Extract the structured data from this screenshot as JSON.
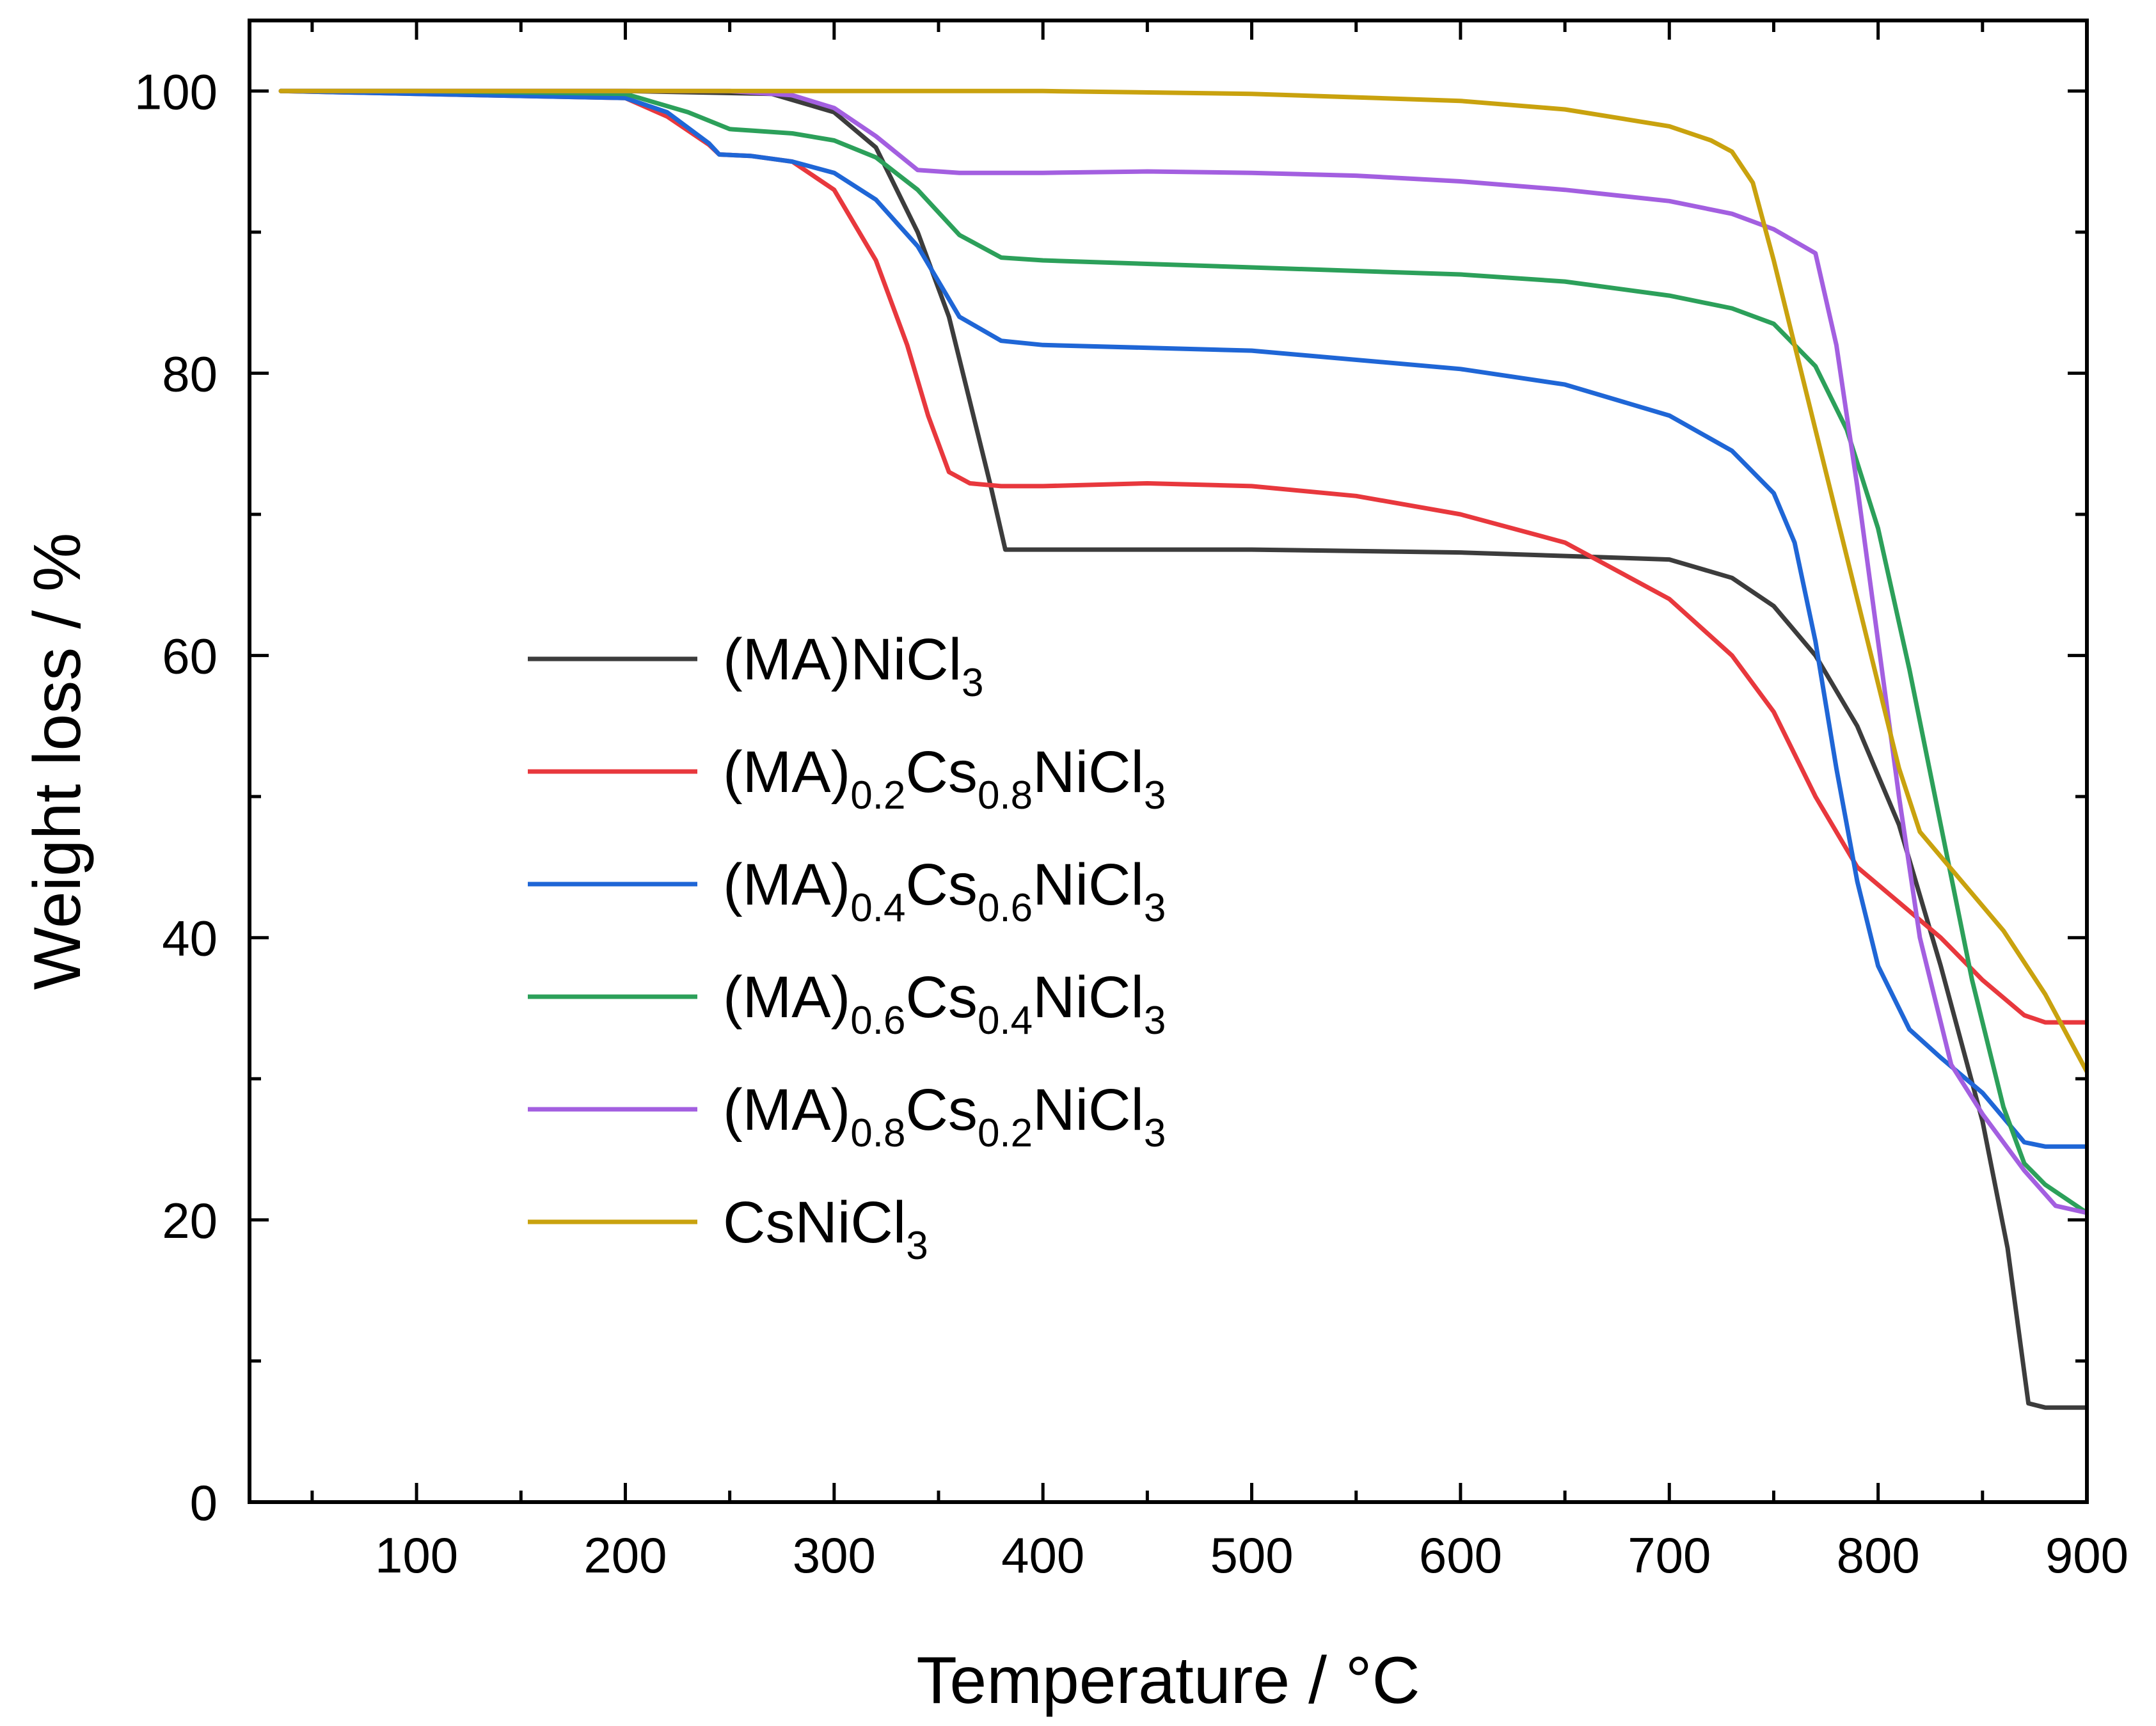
{
  "chart_data": {
    "type": "line",
    "title": "",
    "xlabel": "Temperature / °C",
    "ylabel": "Weight loss / %",
    "xlim": [
      20,
      900
    ],
    "ylim": [
      0,
      105
    ],
    "xticks": [
      100,
      200,
      300,
      400,
      500,
      600,
      700,
      800,
      900
    ],
    "xtick_labels": [
      "100",
      "200",
      "300",
      "400",
      "500",
      "600",
      "700",
      "800",
      "900"
    ],
    "yticks": [
      0,
      20,
      40,
      60,
      80,
      100
    ],
    "ytick_labels": [
      "0",
      "20",
      "40",
      "60",
      "80",
      "100"
    ],
    "grid": false,
    "legend_position": "center-left",
    "series": [
      {
        "name": "(MA)NiCl3",
        "label_parts": [
          {
            "t": "(MA)NiCl"
          },
          {
            "t": "3",
            "sub": true
          }
        ],
        "color": "#3c3c3c",
        "x": [
          35,
          100,
          200,
          270,
          300,
          320,
          340,
          355,
          365,
          375,
          382,
          400,
          500,
          600,
          700,
          730,
          750,
          770,
          790,
          810,
          830,
          850,
          862,
          872,
          880,
          900
        ],
        "y": [
          100,
          100,
          100,
          99.8,
          98.5,
          96,
          90,
          84,
          78,
          72,
          67.5,
          67.5,
          67.5,
          67.3,
          66.8,
          65.5,
          63.5,
          60,
          55,
          48,
          38,
          27,
          18,
          7,
          6.7,
          6.7
        ]
      },
      {
        "name": "(MA)0.2Cs0.8NiCl3",
        "label_parts": [
          {
            "t": "(MA)"
          },
          {
            "t": "0.2",
            "sub": true
          },
          {
            "t": "Cs"
          },
          {
            "t": "0.8",
            "sub": true
          },
          {
            "t": "NiCl"
          },
          {
            "t": "3",
            "sub": true
          }
        ],
        "color": "#e8383d",
        "x": [
          35,
          100,
          200,
          220,
          240,
          245,
          260,
          280,
          300,
          320,
          335,
          345,
          355,
          365,
          380,
          400,
          450,
          500,
          550,
          600,
          650,
          700,
          730,
          750,
          770,
          790,
          810,
          830,
          850,
          870,
          880,
          900
        ],
        "y": [
          100,
          99.8,
          99.5,
          98.2,
          96.2,
          95.5,
          95.4,
          95,
          93,
          88,
          82,
          77,
          73,
          72.2,
          72,
          72,
          72.2,
          72,
          71.3,
          70,
          68,
          64,
          60,
          56,
          50,
          45,
          42.5,
          40,
          37,
          34.5,
          34,
          34
        ]
      },
      {
        "name": "(MA)0.4Cs0.6NiCl3",
        "label_parts": [
          {
            "t": "(MA)"
          },
          {
            "t": "0.4",
            "sub": true
          },
          {
            "t": "Cs"
          },
          {
            "t": "0.6",
            "sub": true
          },
          {
            "t": "NiCl"
          },
          {
            "t": "3",
            "sub": true
          }
        ],
        "color": "#1f66d6",
        "x": [
          35,
          100,
          200,
          220,
          240,
          245,
          260,
          280,
          300,
          320,
          340,
          360,
          380,
          400,
          500,
          600,
          650,
          700,
          730,
          750,
          760,
          770,
          780,
          790,
          800,
          815,
          830,
          850,
          870,
          880,
          900
        ],
        "y": [
          100,
          99.8,
          99.5,
          98.5,
          96.3,
          95.5,
          95.4,
          95,
          94.2,
          92.3,
          89,
          84,
          82.3,
          82,
          81.6,
          80.3,
          79.2,
          77,
          74.5,
          71.5,
          68,
          61,
          52,
          44,
          38,
          33.5,
          31.5,
          29,
          25.5,
          25.2,
          25.2
        ]
      },
      {
        "name": "(MA)0.6Cs0.4NiCl3",
        "label_parts": [
          {
            "t": "(MA)"
          },
          {
            "t": "0.6",
            "sub": true
          },
          {
            "t": "Cs"
          },
          {
            "t": "0.4",
            "sub": true
          },
          {
            "t": "NiCl"
          },
          {
            "t": "3",
            "sub": true
          }
        ],
        "color": "#2ca05a",
        "x": [
          35,
          100,
          200,
          230,
          250,
          260,
          280,
          300,
          320,
          340,
          360,
          380,
          400,
          500,
          600,
          650,
          700,
          730,
          750,
          770,
          785,
          800,
          815,
          830,
          845,
          860,
          870,
          880,
          900
        ],
        "y": [
          100,
          100,
          99.8,
          98.5,
          97.3,
          97.2,
          97,
          96.5,
          95.3,
          93,
          89.8,
          88.2,
          88,
          87.5,
          87,
          86.5,
          85.5,
          84.6,
          83.5,
          80.5,
          76,
          69,
          59,
          48,
          37,
          28,
          24,
          22.5,
          20.5
        ]
      },
      {
        "name": "(MA)0.8Cs0.2NiCl3",
        "label_parts": [
          {
            "t": "(MA)"
          },
          {
            "t": "0.8",
            "sub": true
          },
          {
            "t": "Cs"
          },
          {
            "t": "0.2",
            "sub": true
          },
          {
            "t": "NiCl"
          },
          {
            "t": "3",
            "sub": true
          }
        ],
        "color": "#a35fe0",
        "x": [
          35,
          100,
          200,
          250,
          280,
          300,
          320,
          340,
          360,
          400,
          450,
          500,
          550,
          600,
          650,
          700,
          730,
          750,
          770,
          780,
          790,
          800,
          810,
          820,
          835,
          850,
          870,
          885,
          900
        ],
        "y": [
          100,
          100,
          100,
          100,
          99.7,
          98.8,
          96.8,
          94.4,
          94.2,
          94.2,
          94.3,
          94.2,
          94,
          93.6,
          93,
          92.2,
          91.3,
          90.2,
          88.5,
          82,
          72,
          61,
          50,
          40,
          31,
          27.5,
          23.5,
          21,
          20.5
        ]
      },
      {
        "name": "CsNiCl3",
        "label_parts": [
          {
            "t": "CsNiCl"
          },
          {
            "t": "3",
            "sub": true
          }
        ],
        "color": "#c9a20e",
        "x": [
          35,
          100,
          200,
          300,
          400,
          500,
          600,
          650,
          700,
          720,
          730,
          740,
          750,
          760,
          770,
          780,
          790,
          800,
          810,
          820,
          840,
          860,
          880,
          900
        ],
        "y": [
          100,
          100,
          100,
          100,
          100,
          99.8,
          99.3,
          98.7,
          97.5,
          96.5,
          95.7,
          93.5,
          88,
          82,
          76,
          70,
          64,
          58,
          52,
          47.5,
          44,
          40.5,
          36,
          30.5
        ]
      }
    ]
  }
}
